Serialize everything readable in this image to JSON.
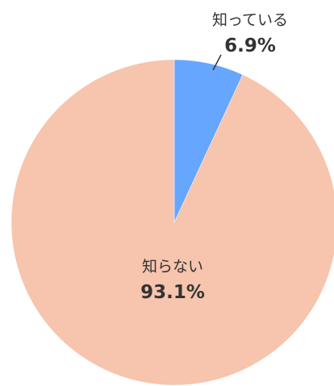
{
  "chart_data": {
    "type": "pie",
    "start_angle_deg": 0,
    "direction": "clockwise",
    "slices": [
      {
        "label": "知っている",
        "value": 6.9,
        "value_text": "6.9%",
        "color": "#66a6ff"
      },
      {
        "label": "知らない",
        "value": 93.1,
        "value_text": "93.1%",
        "color": "#f7c4ad"
      }
    ]
  }
}
